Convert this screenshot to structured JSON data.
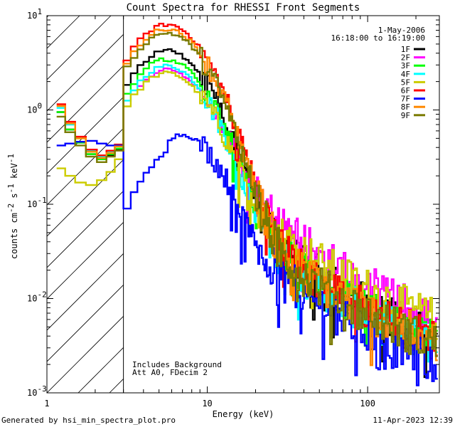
{
  "chart_data": {
    "type": "line",
    "title": "Count Spectra for RHESSI Front Segments",
    "xlabel": "Energy (keV)",
    "ylabel": {
      "prefix": "counts cm",
      "sup1": "-2",
      "mid1": " s",
      "sup2": "-1",
      "mid2": " keV",
      "sup3": "-1"
    },
    "xscale": "log",
    "yscale": "log",
    "xlim": [
      1,
      280
    ],
    "ylim": [
      0.001,
      10
    ],
    "x_ticks": [
      {
        "value": 1,
        "label": "1"
      },
      {
        "value": 10,
        "label": "10"
      },
      {
        "value": 100,
        "label": "100"
      }
    ],
    "y_ticks": [
      {
        "value": 0.001,
        "base": "10",
        "exp": "-3"
      },
      {
        "value": 0.01,
        "base": "10",
        "exp": "-2"
      },
      {
        "value": 0.1,
        "base": "10",
        "exp": "-1"
      },
      {
        "value": 1,
        "base": "10",
        "exp": "0"
      },
      {
        "value": 10,
        "base": "10",
        "exp": "1"
      }
    ],
    "excluded_region": {
      "x_from": 1,
      "x_to": 3
    },
    "header_date": "1-May-2006",
    "header_time": "16:18:00 to 16:19:00",
    "annotations": [
      "Includes Background",
      "Att A0, FDecim 2"
    ],
    "series": [
      {
        "name": "1F",
        "color": "#000000",
        "low": [
          0.95,
          0.62,
          0.45,
          0.34,
          0.3,
          0.33,
          0.38
        ],
        "peak": 4.2,
        "mid": 0.09,
        "tail": 0.0055
      },
      {
        "name": "2F",
        "color": "#ff00ff",
        "low": [
          null,
          null,
          null,
          null,
          null,
          null,
          null
        ],
        "peak": 2.6,
        "mid": 0.16,
        "tail": 0.0085,
        "start": 3.55
      },
      {
        "name": "3F",
        "color": "#00ff00",
        "low": [
          0.95,
          0.62,
          0.45,
          0.34,
          0.3,
          0.34,
          0.39
        ],
        "peak": 3.4,
        "mid": 0.07,
        "tail": 0.005
      },
      {
        "name": "4F",
        "color": "#00ffff",
        "low": [
          1.05,
          0.7,
          0.5,
          0.37,
          0.32,
          0.36,
          0.41
        ],
        "peak": 2.9,
        "mid": 0.065,
        "tail": 0.0046
      },
      {
        "name": "5F",
        "color": "#cccc00",
        "low": [
          0.24,
          0.2,
          0.17,
          0.16,
          0.18,
          0.22,
          0.3
        ],
        "peak": 2.4,
        "mid": 0.11,
        "tail": 0.009
      },
      {
        "name": "6F",
        "color": "#ff0000",
        "low": [
          1.15,
          0.75,
          0.52,
          0.38,
          0.33,
          0.37,
          0.43
        ],
        "peak": 8.0,
        "mid": 0.075,
        "tail": 0.0052
      },
      {
        "name": "7F",
        "color": "#0000ff",
        "low": [
          0.42,
          0.44,
          0.46,
          0.47,
          0.44,
          0.42,
          0.42
        ],
        "peak": 0.52,
        "mid": 0.045,
        "tail": 0.003,
        "start": 3.0
      },
      {
        "name": "8F",
        "color": "#ff8800",
        "low": [
          1.1,
          0.72,
          0.5,
          0.36,
          0.31,
          0.35,
          0.41
        ],
        "peak": 7.2,
        "mid": 0.07,
        "tail": 0.005
      },
      {
        "name": "9F",
        "color": "#7a7a00",
        "low": [
          0.85,
          0.58,
          0.42,
          0.32,
          0.28,
          0.32,
          0.37
        ],
        "peak": 6.5,
        "mid": 0.065,
        "tail": 0.0048
      }
    ]
  },
  "footer": {
    "generated_by": "Generated by hsi_min_spectra_plot.pro",
    "timestamp": "11-Apr-2023 12:39"
  }
}
